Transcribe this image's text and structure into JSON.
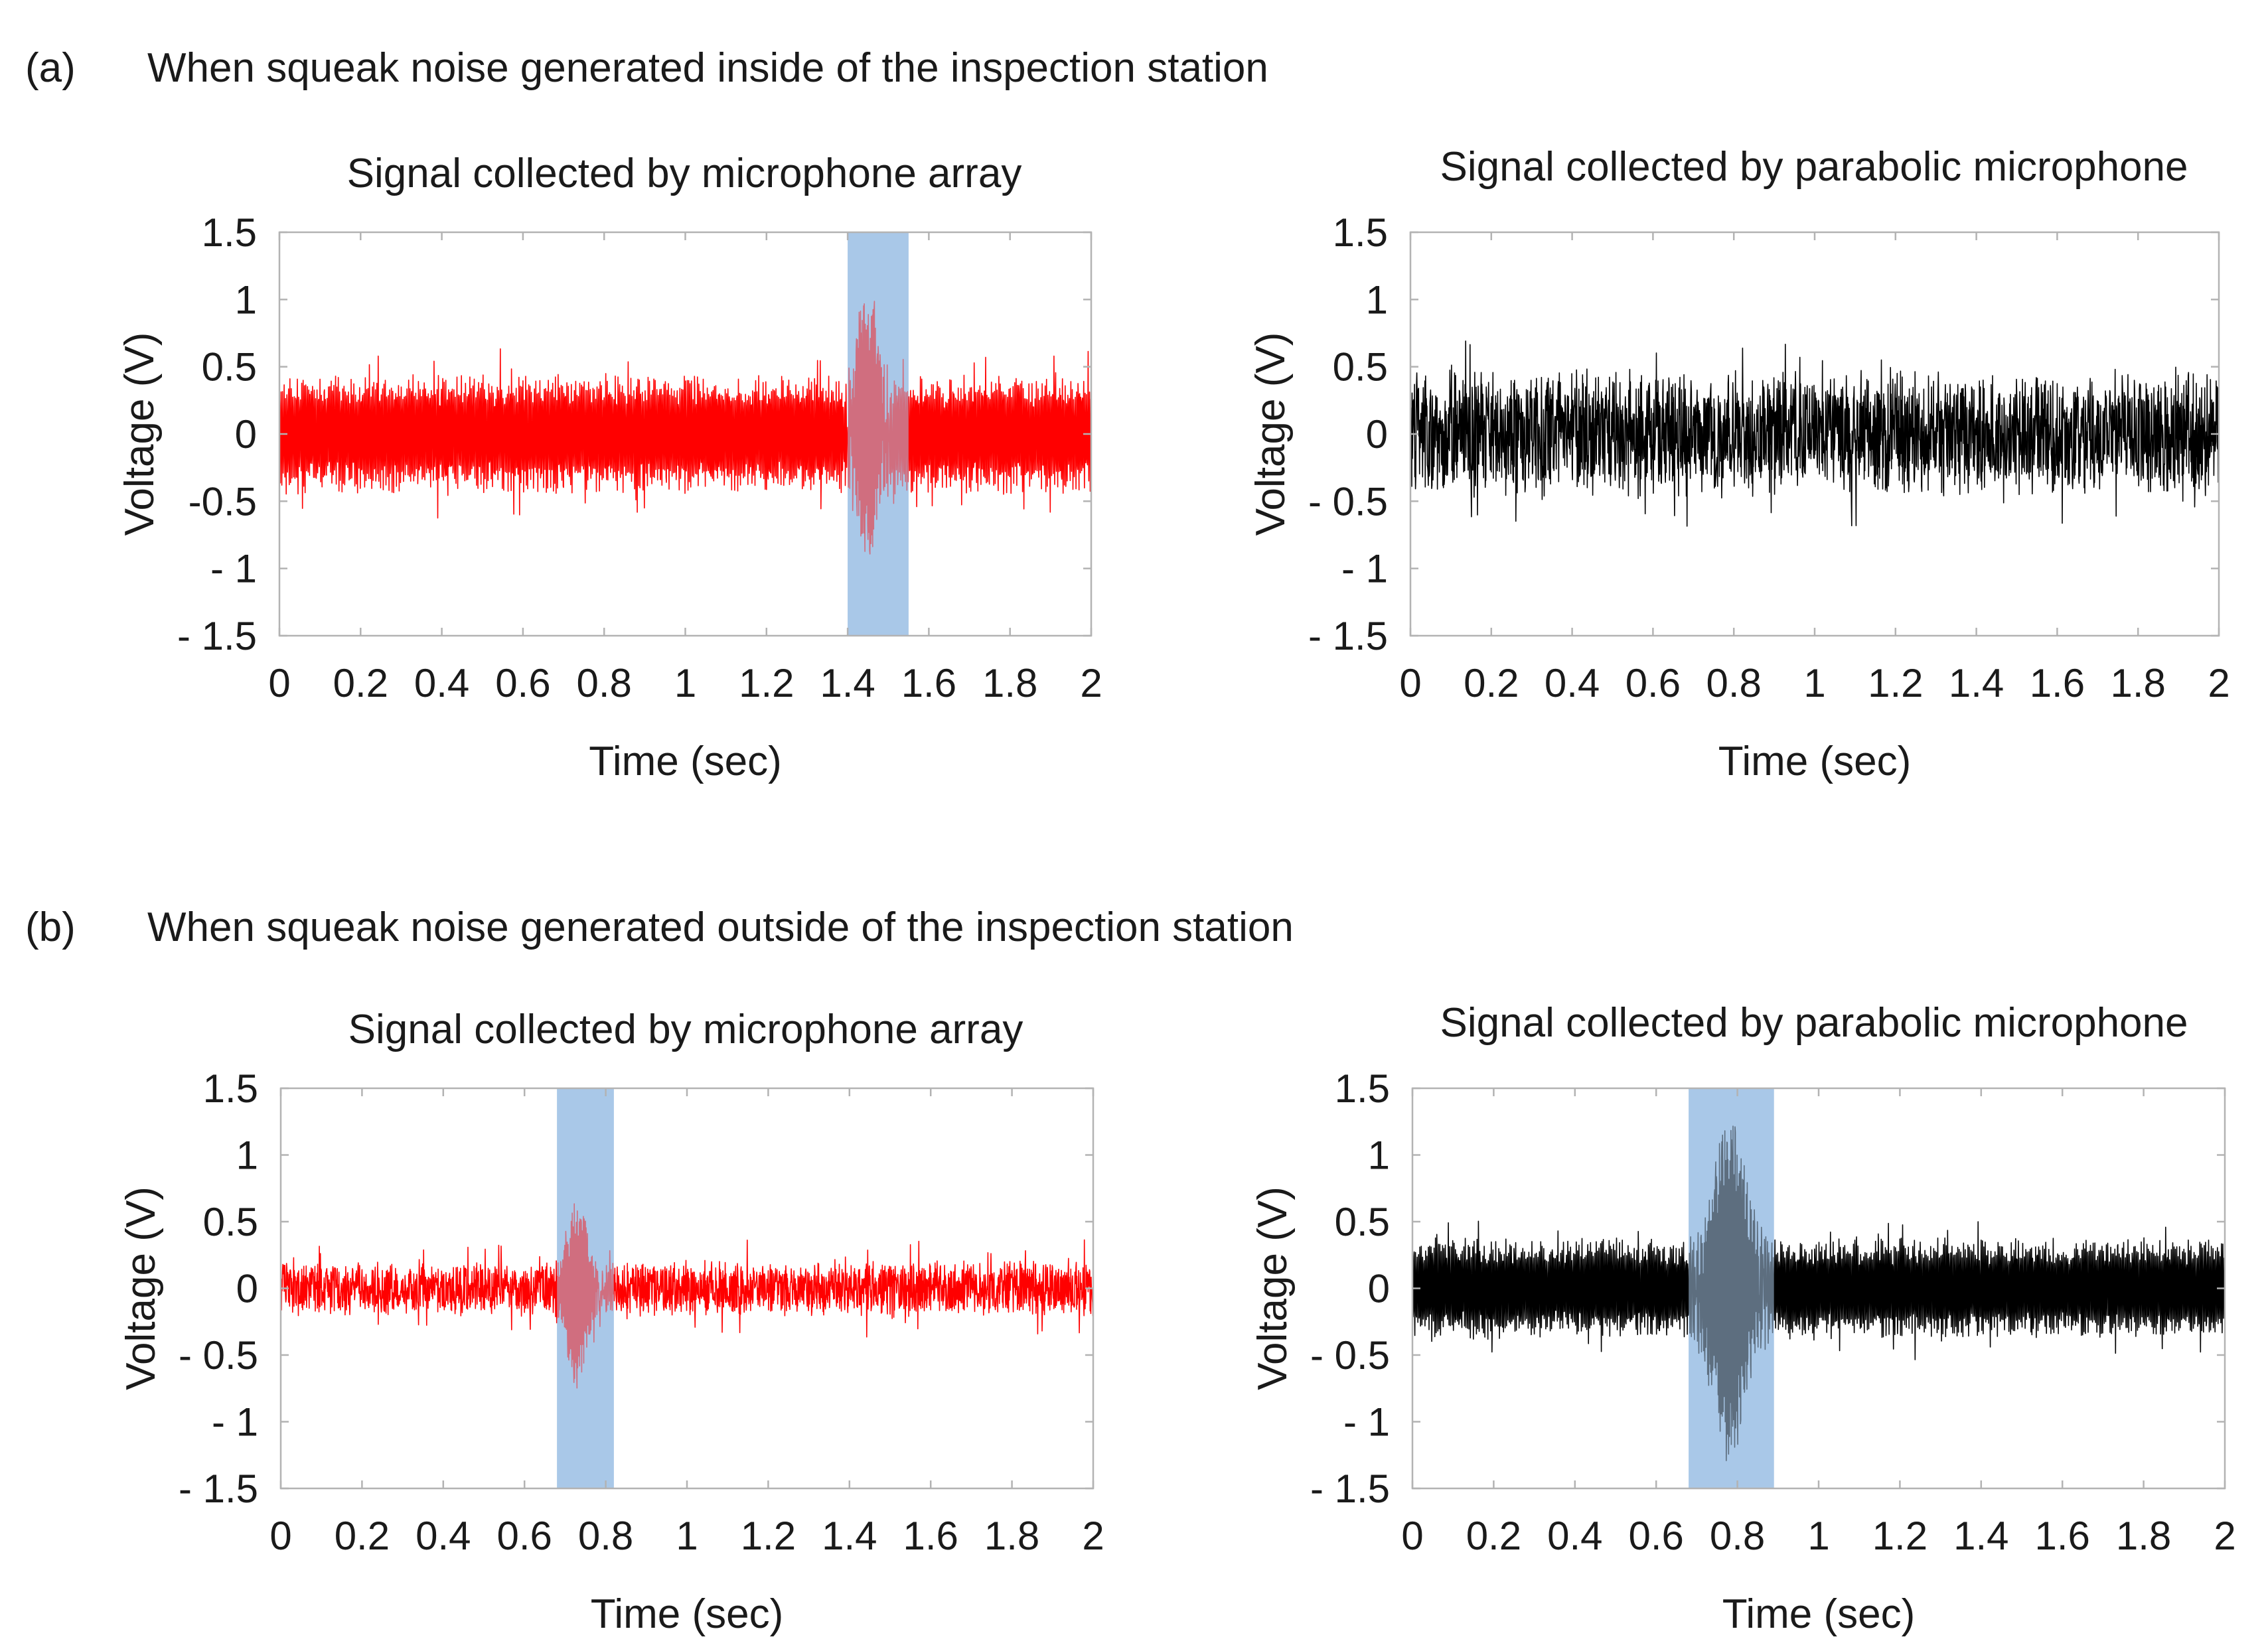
{
  "figure": {
    "panels": [
      {
        "label": "(a)",
        "heading": "When squeak noise generated inside of the inspection station"
      },
      {
        "label": "(b)",
        "heading": "When squeak noise generated outside of the inspection station"
      }
    ]
  },
  "colors": {
    "array_signal": "#ff0000",
    "parabolic_signal": "#000000",
    "highlight": "#a9c8e8",
    "axis": "#b3b3b3"
  },
  "chart_data": [
    {
      "type": "line",
      "panel": "(a)",
      "title": "Signal collected by microphone array",
      "xlabel": "Time (sec)",
      "ylabel": "Voltage (V)",
      "xlim": [
        0,
        2
      ],
      "ylim": [
        -1.5,
        1.5
      ],
      "xticks": [
        0,
        0.2,
        0.4,
        0.6,
        0.8,
        1,
        1.2,
        1.4,
        1.6,
        1.8,
        2
      ],
      "xtick_labels": [
        "0",
        "0.2",
        "0.4",
        "0.6",
        "0.8",
        "1",
        "1.2",
        "1.4",
        "1.6",
        "1.8",
        "2"
      ],
      "yticks": [
        -1.5,
        -1,
        -0.5,
        0,
        0.5,
        1,
        1.5
      ],
      "ytick_labels": [
        "- 1.5",
        "- 1",
        "-0.5",
        "0",
        "0.5",
        "1",
        "1.5"
      ],
      "grid": false,
      "highlight": {
        "x_start": 1.4,
        "x_end": 1.55
      },
      "series": [
        {
          "name": "Signal collected by microphone array",
          "color": "#ff0000",
          "baseline_amplitude": 0.45,
          "baseline_peak": 0.65,
          "burst": {
            "center": 1.45,
            "width": 0.04,
            "peak_max": 1.1,
            "peak_min": -0.92
          },
          "noise_style": "periodic",
          "seed": 11
        }
      ]
    },
    {
      "type": "line",
      "panel": "(a)",
      "title": "Signal collected by parabolic microphone",
      "xlabel": "Time (sec)",
      "ylabel": "Voltage (V)",
      "xlim": [
        0,
        2
      ],
      "ylim": [
        -1.5,
        1.5
      ],
      "xticks": [
        0,
        0.2,
        0.4,
        0.6,
        0.8,
        1,
        1.2,
        1.4,
        1.6,
        1.8,
        2
      ],
      "xtick_labels": [
        "0",
        "0.2",
        "0.4",
        "0.6",
        "0.8",
        "1",
        "1.2",
        "1.4",
        "1.6",
        "1.8",
        "2"
      ],
      "yticks": [
        -1.5,
        -1,
        -0.5,
        0,
        0.5,
        1,
        1.5
      ],
      "ytick_labels": [
        "- 1.5",
        "- 1",
        "- 0.5",
        "0",
        "0.5",
        "1",
        "1.5"
      ],
      "grid": false,
      "highlight": null,
      "series": [
        {
          "name": "Signal collected by parabolic microphone",
          "color": "#000000",
          "baseline_amplitude": 0.5,
          "baseline_peak": 0.75,
          "burst": null,
          "noise_style": "dense",
          "seed": 23
        }
      ]
    },
    {
      "type": "line",
      "panel": "(b)",
      "title": "Signal collected by microphone array",
      "xlabel": "Time (sec)",
      "ylabel": "Voltage (V)",
      "xlim": [
        0,
        2
      ],
      "ylim": [
        -1.5,
        1.5
      ],
      "xticks": [
        0,
        0.2,
        0.4,
        0.6,
        0.8,
        1,
        1.2,
        1.4,
        1.6,
        1.8,
        2
      ],
      "xtick_labels": [
        "0",
        "0.2",
        "0.4",
        "0.6",
        "0.8",
        "1",
        "1.2",
        "1.4",
        "1.6",
        "1.8",
        "2"
      ],
      "yticks": [
        -1.5,
        -1,
        -0.5,
        0,
        0.5,
        1,
        1.5
      ],
      "ytick_labels": [
        "- 1.5",
        "- 1",
        "- 0.5",
        "0",
        "0.5",
        "1",
        "1.5"
      ],
      "grid": false,
      "highlight": {
        "x_start": 0.68,
        "x_end": 0.82
      },
      "series": [
        {
          "name": "Signal collected by microphone array",
          "color": "#ff0000",
          "baseline_amplitude": 0.22,
          "baseline_peak": 0.38,
          "burst": {
            "center": 0.73,
            "width": 0.035,
            "peak_max": 0.7,
            "peak_min": -0.78
          },
          "noise_style": "dense",
          "seed": 37
        }
      ]
    },
    {
      "type": "line",
      "panel": "(b)",
      "title": "Signal collected by parabolic microphone",
      "xlabel": "Time (sec)",
      "ylabel": "Voltage (V)",
      "xlim": [
        0,
        2
      ],
      "ylim": [
        -1.5,
        1.5
      ],
      "xticks": [
        0,
        0.2,
        0.4,
        0.6,
        0.8,
        1,
        1.2,
        1.4,
        1.6,
        1.8,
        2
      ],
      "xtick_labels": [
        "0",
        "0.2",
        "0.4",
        "0.6",
        "0.8",
        "1",
        "1.2",
        "1.4",
        "1.6",
        "1.8",
        "2"
      ],
      "yticks": [
        -1.5,
        -1,
        -0.5,
        0,
        0.5,
        1,
        1.5
      ],
      "ytick_labels": [
        "- 1.5",
        "- 1",
        "- 0.5",
        "0",
        "0.5",
        "1",
        "1.5"
      ],
      "grid": false,
      "highlight": {
        "x_start": 0.68,
        "x_end": 0.89
      },
      "series": [
        {
          "name": "Signal collected by parabolic microphone",
          "color": "#000000",
          "baseline_amplitude": 0.38,
          "baseline_peak": 0.55,
          "burst": {
            "center": 0.78,
            "width": 0.06,
            "peak_max": 1.3,
            "peak_min": -1.32
          },
          "noise_style": "periodic",
          "seed": 53
        }
      ]
    }
  ]
}
